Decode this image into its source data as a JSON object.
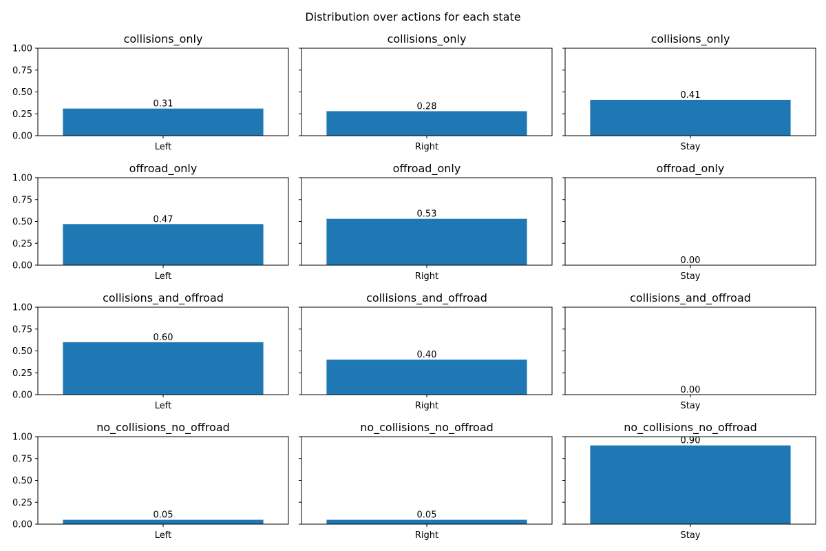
{
  "chart_data": {
    "type": "bar",
    "title": "Distribution over actions for each state",
    "bar_color": "#1f77b4",
    "ylim": [
      0,
      1
    ],
    "yticks": [
      "0.00",
      "0.25",
      "0.50",
      "0.75",
      "1.00"
    ],
    "grid": false,
    "legend": "none",
    "layout": "4x3 grid, shared y-axis per row",
    "panels": [
      {
        "title": "collisions_only",
        "category": "Left",
        "value": 0.31,
        "label": "0.31"
      },
      {
        "title": "collisions_only",
        "category": "Right",
        "value": 0.28,
        "label": "0.28"
      },
      {
        "title": "collisions_only",
        "category": "Stay",
        "value": 0.41,
        "label": "0.41"
      },
      {
        "title": "offroad_only",
        "category": "Left",
        "value": 0.47,
        "label": "0.47"
      },
      {
        "title": "offroad_only",
        "category": "Right",
        "value": 0.53,
        "label": "0.53"
      },
      {
        "title": "offroad_only",
        "category": "Stay",
        "value": 0.0,
        "label": "0.00"
      },
      {
        "title": "collisions_and_offroad",
        "category": "Left",
        "value": 0.6,
        "label": "0.60"
      },
      {
        "title": "collisions_and_offroad",
        "category": "Right",
        "value": 0.4,
        "label": "0.40"
      },
      {
        "title": "collisions_and_offroad",
        "category": "Stay",
        "value": 0.0,
        "label": "0.00"
      },
      {
        "title": "no_collisions_no_offroad",
        "category": "Left",
        "value": 0.05,
        "label": "0.05"
      },
      {
        "title": "no_collisions_no_offroad",
        "category": "Right",
        "value": 0.05,
        "label": "0.05"
      },
      {
        "title": "no_collisions_no_offroad",
        "category": "Stay",
        "value": 0.9,
        "label": "0.90"
      }
    ]
  }
}
